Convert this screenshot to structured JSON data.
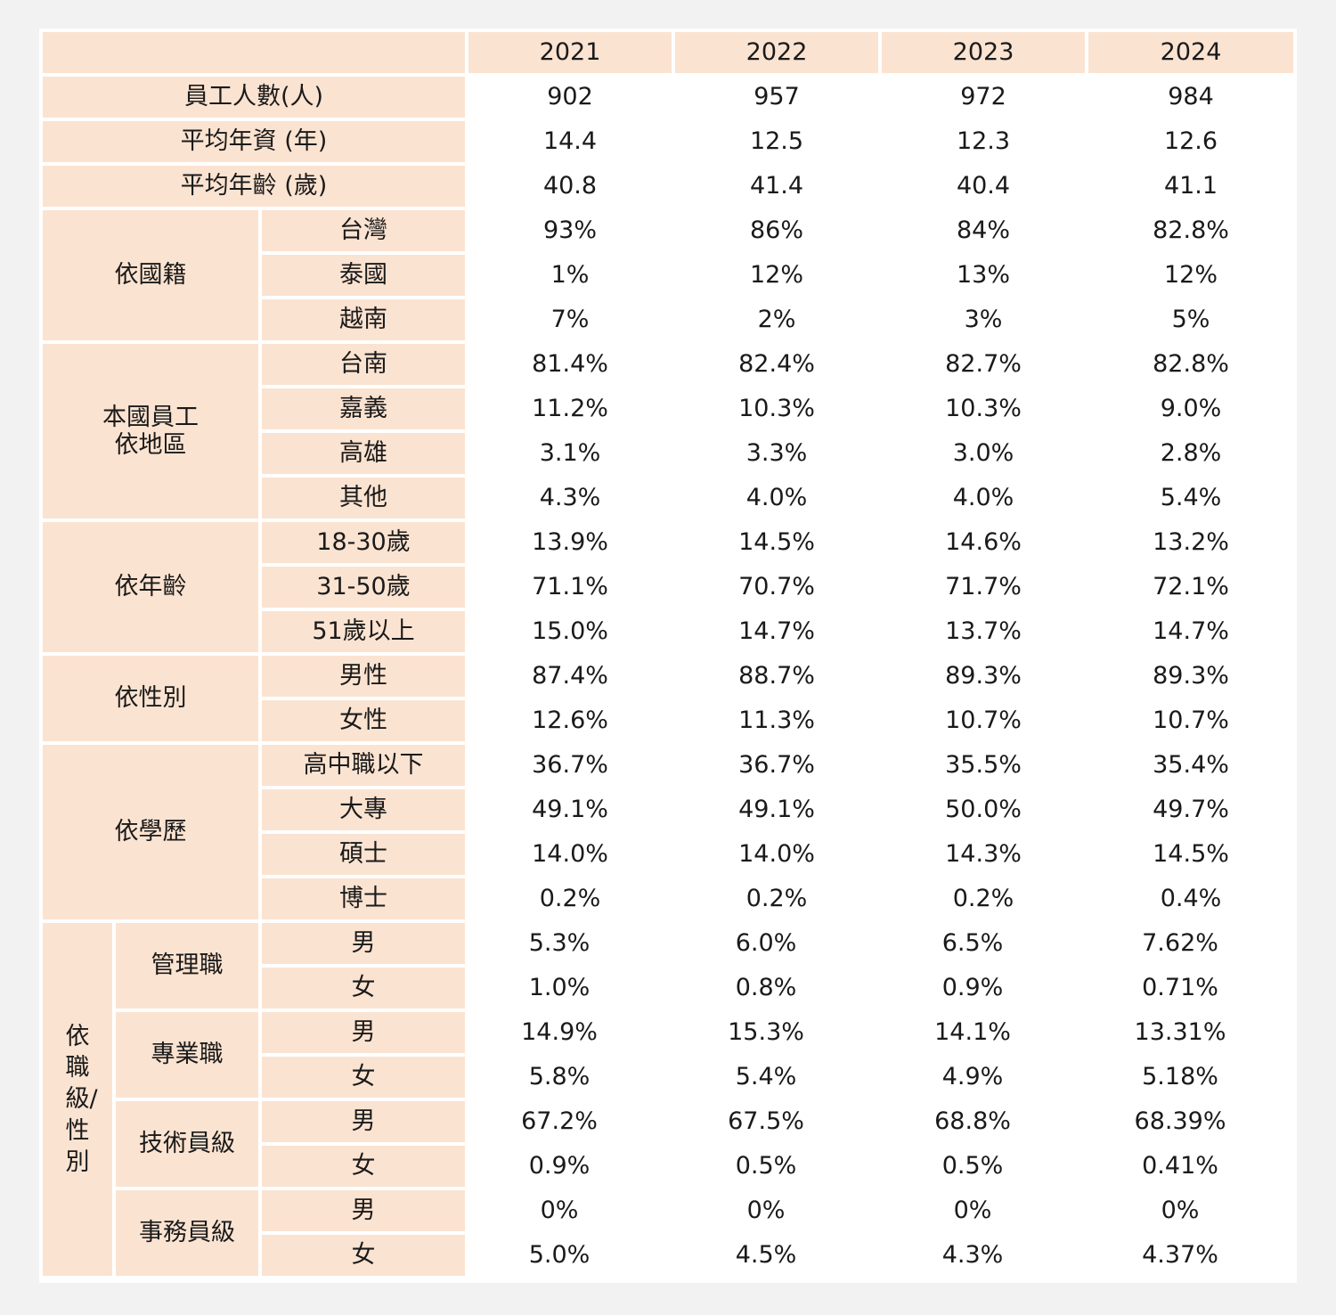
{
  "years": [
    "2021",
    "2022",
    "2023",
    "2024"
  ],
  "summary": [
    {
      "label": "員工人數(人)",
      "values": [
        "902",
        "957",
        "972",
        "984"
      ]
    },
    {
      "label": "平均年資 (年)",
      "values": [
        "14.4",
        "12.5",
        "12.3",
        "12.6"
      ]
    },
    {
      "label": "平均年齡 (歲)",
      "values": [
        "40.8",
        "41.4",
        "40.4",
        "41.1"
      ]
    }
  ],
  "groups": [
    {
      "label": "依國籍",
      "rows": [
        {
          "label": "台灣",
          "values": [
            "93%",
            "86%",
            "84%",
            "82.8%"
          ]
        },
        {
          "label": "泰國",
          "values": [
            "1%",
            "12%",
            "13%",
            "12%"
          ]
        },
        {
          "label": "越南",
          "values": [
            "7%",
            "2%",
            "3%",
            "5%"
          ]
        }
      ]
    },
    {
      "label": "本國員工\n依地區",
      "rows": [
        {
          "label": "台南",
          "values": [
            "81.4%",
            "82.4%",
            "82.7%",
            "82.8%"
          ]
        },
        {
          "label": "嘉義",
          "values": [
            "11.2%",
            "10.3%",
            "10.3%",
            "9.0%"
          ]
        },
        {
          "label": "高雄",
          "values": [
            "3.1%",
            "3.3%",
            "3.0%",
            "2.8%"
          ]
        },
        {
          "label": "其他",
          "values": [
            "4.3%",
            "4.0%",
            "4.0%",
            "5.4%"
          ]
        }
      ]
    },
    {
      "label": "依年齡",
      "rows": [
        {
          "label": "18-30歲",
          "values": [
            "13.9%",
            "14.5%",
            "14.6%",
            "13.2%"
          ]
        },
        {
          "label": "31-50歲",
          "values": [
            "71.1%",
            "70.7%",
            "71.7%",
            "72.1%"
          ]
        },
        {
          "label": "51歲以上",
          "values": [
            "15.0%",
            "14.7%",
            "13.7%",
            "14.7%"
          ]
        }
      ]
    },
    {
      "label": "依性別",
      "rows": [
        {
          "label": "男性",
          "values": [
            "87.4%",
            "88.7%",
            "89.3%",
            "89.3%"
          ]
        },
        {
          "label": "女性",
          "values": [
            "12.6%",
            "11.3%",
            "10.7%",
            "10.7%"
          ]
        }
      ]
    },
    {
      "label": "依學歷",
      "rows": [
        {
          "label": "高中職以下",
          "values": [
            "36.7%",
            "36.7%",
            "35.5%",
            "35.4%"
          ]
        },
        {
          "label": "大專",
          "values": [
            "49.1%",
            "49.1%",
            "50.0%",
            "49.7%"
          ]
        },
        {
          "label": "碩士",
          "values": [
            "14.0%",
            "14.0%",
            "14.3%",
            "14.5%"
          ]
        },
        {
          "label": "博士",
          "values": [
            "0.2%",
            "0.2%",
            "0.2%",
            "0.4%"
          ]
        }
      ]
    }
  ],
  "job_level": {
    "label": "依職級/性別",
    "subgroups": [
      {
        "label": "管理職",
        "rows": [
          {
            "label": "男",
            "values": [
              "5.3%",
              "6.0%",
              "6.5%",
              "7.62%"
            ]
          },
          {
            "label": "女",
            "values": [
              "1.0%",
              "0.8%",
              "0.9%",
              "0.71%"
            ]
          }
        ]
      },
      {
        "label": "專業職",
        "rows": [
          {
            "label": "男",
            "values": [
              "14.9%",
              "15.3%",
              "14.1%",
              "13.31%"
            ]
          },
          {
            "label": "女",
            "values": [
              "5.8%",
              "5.4%",
              "4.9%",
              "5.18%"
            ]
          }
        ]
      },
      {
        "label": "技術員級",
        "rows": [
          {
            "label": "男",
            "values": [
              "67.2%",
              "67.5%",
              "68.8%",
              "68.39%"
            ]
          },
          {
            "label": "女",
            "values": [
              "0.9%",
              "0.5%",
              "0.5%",
              "0.41%"
            ]
          }
        ]
      },
      {
        "label": "事務員級",
        "rows": [
          {
            "label": "男",
            "values": [
              "0%",
              "0%",
              "0%",
              "0%"
            ]
          },
          {
            "label": "女",
            "values": [
              "5.0%",
              "4.5%",
              "4.3%",
              "4.37%"
            ]
          }
        ]
      }
    ]
  }
}
